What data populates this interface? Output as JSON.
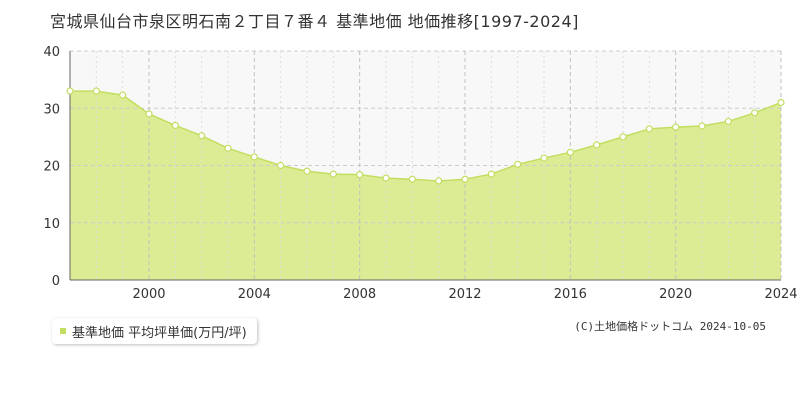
{
  "title": "宮城県仙台市泉区明石南２丁目７番４ 基準地価 地価推移[1997-2024]",
  "copyright": "(C)土地価格ドットコム 2024-10-05",
  "colors": {
    "fill": "#dcec94",
    "line": "#c2de60",
    "marker_fill": "#ffffff",
    "plot_bg": "#f8f8f8",
    "grid": "#cccccc",
    "axis": "#666666"
  },
  "chart_data": {
    "type": "area",
    "title": "宮城県仙台市泉区明石南２丁目７番４ 基準地価 地価推移[1997-2024]",
    "xlabel": "",
    "ylabel": "",
    "xlim": [
      1997,
      2024
    ],
    "ylim": [
      0,
      40
    ],
    "y_ticks": [
      0,
      10,
      20,
      30,
      40
    ],
    "x_ticks": [
      2000,
      2004,
      2008,
      2012,
      2016,
      2020,
      2024
    ],
    "grid": true,
    "legend_position": "bottom-left",
    "series": [
      {
        "name": "基準地価 平均坪単価(万円/坪)",
        "x": [
          1997,
          1998,
          1999,
          2000,
          2001,
          2002,
          2003,
          2004,
          2005,
          2006,
          2007,
          2008,
          2009,
          2010,
          2011,
          2012,
          2013,
          2014,
          2015,
          2016,
          2017,
          2018,
          2019,
          2020,
          2021,
          2022,
          2023,
          2024
        ],
        "y": [
          33.0,
          33.0,
          32.3,
          29.0,
          27.0,
          25.2,
          23.0,
          21.5,
          20.0,
          19.0,
          18.5,
          18.4,
          17.8,
          17.6,
          17.3,
          17.6,
          18.5,
          20.2,
          21.3,
          22.3,
          23.6,
          25.0,
          26.4,
          26.7,
          26.9,
          27.7,
          29.2,
          31.0
        ]
      }
    ]
  }
}
